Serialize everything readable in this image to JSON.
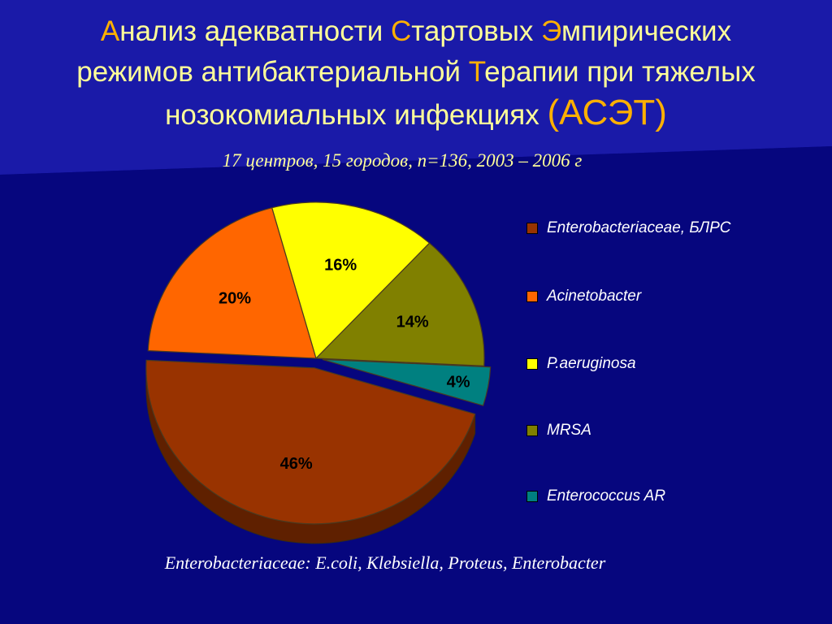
{
  "title": {
    "l1_a": "А",
    "l1_b": "нализ адекватности ",
    "l1_c": "С",
    "l1_d": "тартовых ",
    "l1_e": "Э",
    "l1_f": "мпирических",
    "l2_a": "режимов антибактериальной ",
    "l2_b": "Т",
    "l2_c": "ерапии при тяжелых",
    "l3_a": "нозокомиальных инфекциях ",
    "l3_b": "(АСЭТ)"
  },
  "subtitle": "17 центров, 15 городов, n=136,  2003 – 2006 г",
  "footnote": {
    "a": "Enterobacteriaceae",
    "b": ": E.coli, Klebsiella, Proteus, Enterobacter"
  },
  "chart_data": {
    "type": "pie",
    "slices": [
      {
        "name": "Enterobacteriaceae, БЛРС",
        "value": 46,
        "label": "46%",
        "color": "#993300"
      },
      {
        "name": "Acinetobacter",
        "value": 20,
        "label": "20%",
        "color": "#ff6600"
      },
      {
        "name": "P.aeruginosa",
        "value": 16,
        "label": "16%",
        "color": "#ffff00"
      },
      {
        "name": "MRSA",
        "value": 14,
        "label": "14%",
        "color": "#808000"
      },
      {
        "name": "Enterococcus AR",
        "value": 4,
        "label": "4%",
        "color": "#008080"
      }
    ],
    "legend_position": "right"
  }
}
